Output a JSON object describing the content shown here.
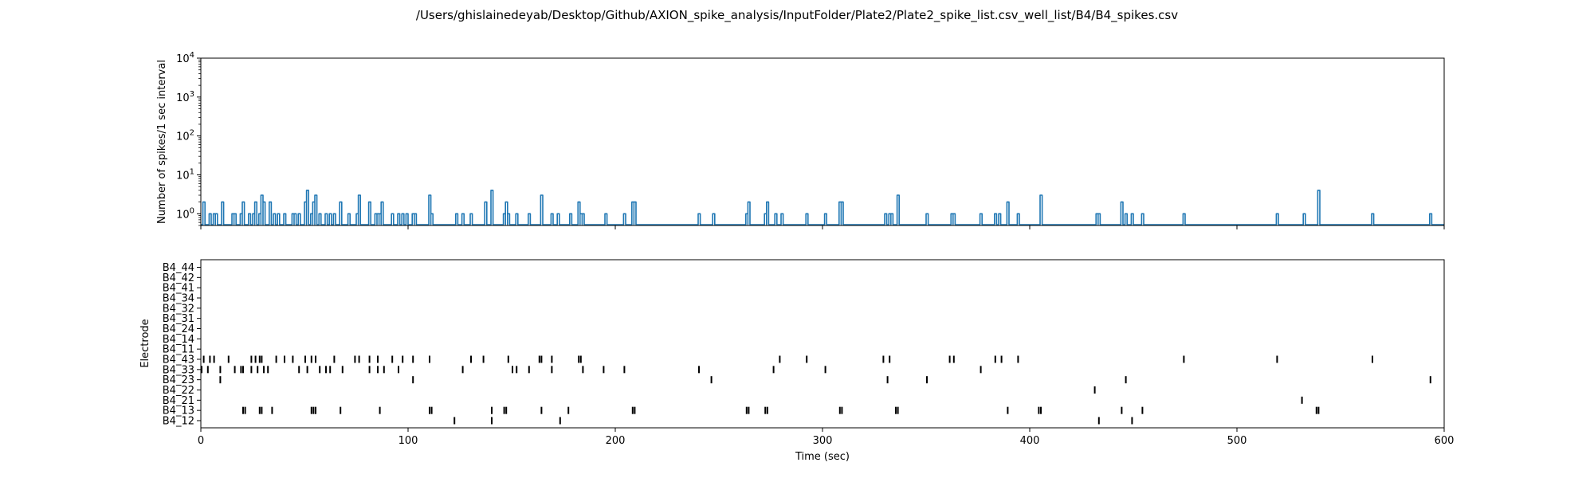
{
  "title": "/Users/ghislainedeyab/Desktop/Github/AXION_spike_analysis/InputFolder/Plate2/Plate2_spike_list.csv_well_list/B4/B4_spikes.csv",
  "chart_data": [
    {
      "type": "line",
      "panel": "top",
      "xlabel": "",
      "ylabel": "Number of spikes/1 sec interval",
      "xlim": [
        0,
        600
      ],
      "ylim": [
        0.5,
        10000
      ],
      "yscale": "log",
      "yticks": [
        1,
        10,
        100,
        1000,
        10000
      ],
      "ytick_labels": [
        {
          "base": "10",
          "exp": "0"
        },
        {
          "base": "10",
          "exp": "1"
        },
        {
          "base": "10",
          "exp": "2"
        },
        {
          "base": "10",
          "exp": "3"
        },
        {
          "base": "10",
          "exp": "4"
        }
      ],
      "grid": false,
      "series_color": "#1f77b4",
      "spikes": [
        [
          1,
          2
        ],
        [
          4,
          1
        ],
        [
          6,
          1
        ],
        [
          7,
          1
        ],
        [
          10,
          2
        ],
        [
          15,
          1
        ],
        [
          16,
          1
        ],
        [
          19,
          1
        ],
        [
          20,
          2
        ],
        [
          23,
          1
        ],
        [
          25,
          1
        ],
        [
          26,
          2
        ],
        [
          28,
          1
        ],
        [
          29,
          3
        ],
        [
          30,
          2
        ],
        [
          33,
          2
        ],
        [
          35,
          1
        ],
        [
          37,
          1
        ],
        [
          40,
          1
        ],
        [
          44,
          1
        ],
        [
          45,
          1
        ],
        [
          47,
          1
        ],
        [
          50,
          2
        ],
        [
          51,
          4
        ],
        [
          53,
          1
        ],
        [
          54,
          2
        ],
        [
          55,
          3
        ],
        [
          57,
          1
        ],
        [
          60,
          1
        ],
        [
          62,
          1
        ],
        [
          64,
          1
        ],
        [
          67,
          2
        ],
        [
          71,
          1
        ],
        [
          75,
          1
        ],
        [
          76,
          3
        ],
        [
          81,
          2
        ],
        [
          84,
          1
        ],
        [
          85,
          1
        ],
        [
          86,
          1
        ],
        [
          87,
          2
        ],
        [
          92,
          1
        ],
        [
          95,
          1
        ],
        [
          97,
          1
        ],
        [
          99,
          1
        ],
        [
          102,
          1
        ],
        [
          103,
          1
        ],
        [
          110,
          3
        ],
        [
          111,
          1
        ],
        [
          123,
          1
        ],
        [
          126,
          1
        ],
        [
          130,
          1
        ],
        [
          137,
          2
        ],
        [
          140,
          4
        ],
        [
          146,
          1
        ],
        [
          147,
          2
        ],
        [
          148,
          1
        ],
        [
          152,
          1
        ],
        [
          158,
          1
        ],
        [
          164,
          3
        ],
        [
          169,
          1
        ],
        [
          172,
          1
        ],
        [
          178,
          1
        ],
        [
          182,
          2
        ],
        [
          183,
          1
        ],
        [
          184,
          1
        ],
        [
          195,
          1
        ],
        [
          204,
          1
        ],
        [
          208,
          2
        ],
        [
          209,
          2
        ],
        [
          240,
          1
        ],
        [
          247,
          1
        ],
        [
          263,
          1
        ],
        [
          264,
          2
        ],
        [
          272,
          1
        ],
        [
          273,
          2
        ],
        [
          277,
          1
        ],
        [
          280,
          1
        ],
        [
          292,
          1
        ],
        [
          301,
          1
        ],
        [
          308,
          2
        ],
        [
          309,
          2
        ],
        [
          330,
          1
        ],
        [
          332,
          1
        ],
        [
          333,
          1
        ],
        [
          336,
          3
        ],
        [
          350,
          1
        ],
        [
          362,
          1
        ],
        [
          363,
          1
        ],
        [
          376,
          1
        ],
        [
          383,
          1
        ],
        [
          385,
          1
        ],
        [
          389,
          2
        ],
        [
          394,
          1
        ],
        [
          405,
          3
        ],
        [
          432,
          1
        ],
        [
          433,
          1
        ],
        [
          444,
          2
        ],
        [
          446,
          1
        ],
        [
          449,
          1
        ],
        [
          454,
          1
        ],
        [
          474,
          1
        ],
        [
          519,
          1
        ],
        [
          532,
          1
        ],
        [
          539,
          4
        ],
        [
          565,
          1
        ],
        [
          593,
          1
        ]
      ]
    },
    {
      "type": "scatter",
      "panel": "bottom",
      "xlabel": "Time (sec)",
      "ylabel": "Electrode",
      "xlim": [
        0,
        600
      ],
      "xticks": [
        0,
        100,
        200,
        300,
        400,
        500,
        600
      ],
      "electrodes": [
        "B4_12",
        "B4_13",
        "B4_21",
        "B4_22",
        "B4_23",
        "B4_33",
        "B4_43",
        "B4_11",
        "B4_14",
        "B4_24",
        "B4_31",
        "B4_32",
        "B4_34",
        "B4_41",
        "B4_42",
        "B4_44"
      ],
      "marker_color": "#000000",
      "events": {
        "B4_12": [
          122,
          140,
          173,
          433,
          449
        ],
        "B4_13": [
          20,
          21,
          28,
          29,
          34,
          53,
          54,
          55,
          67,
          86,
          110,
          111,
          140,
          146,
          147,
          164,
          177,
          208,
          209,
          263,
          264,
          272,
          273,
          308,
          309,
          335,
          336,
          389,
          404,
          405,
          444,
          454,
          538,
          539
        ],
        "B4_21": [
          531
        ],
        "B4_22": [
          431
        ],
        "B4_23": [
          9,
          102,
          246,
          331,
          350,
          446,
          593
        ],
        "B4_33": [
          0,
          3,
          9,
          16,
          19,
          20,
          24,
          27,
          30,
          32,
          47,
          51,
          57,
          60,
          62,
          68,
          81,
          85,
          88,
          95,
          126,
          150,
          152,
          158,
          169,
          184,
          194,
          204,
          240,
          276,
          301,
          376
        ],
        "B4_43": [
          1,
          4,
          6,
          13,
          24,
          26,
          28,
          29,
          36,
          40,
          44,
          50,
          53,
          55,
          64,
          74,
          76,
          81,
          85,
          92,
          97,
          102,
          110,
          130,
          136,
          148,
          163,
          164,
          169,
          182,
          183,
          279,
          292,
          329,
          332,
          361,
          363,
          383,
          386,
          394,
          474,
          519,
          565
        ],
        "B4_11": [],
        "B4_14": [],
        "B4_24": [],
        "B4_31": [],
        "B4_32": [],
        "B4_34": [],
        "B4_41": [],
        "B4_42": [],
        "B4_44": []
      }
    }
  ]
}
